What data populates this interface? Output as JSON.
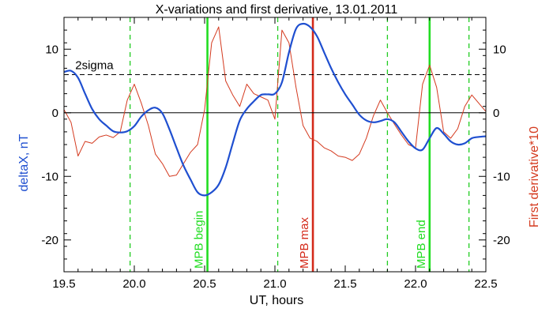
{
  "chart_data": {
    "type": "line",
    "title": "X-variations and first derivative, 13.01.2011",
    "xlabel": "UT, hours",
    "ylabel_left": "deltaX, nT",
    "ylabel_right": "First derivative*10",
    "xlim": [
      19.5,
      22.5
    ],
    "ylim": [
      -25,
      15
    ],
    "x_ticks": [
      19.5,
      20.0,
      20.5,
      21.0,
      21.5,
      22.0,
      22.5
    ],
    "x_tick_labels": [
      "19.5",
      "20.0",
      "20.5",
      "21.0",
      "21.5",
      "22.0",
      "22.5"
    ],
    "y_ticks": [
      -20,
      -10,
      0,
      10
    ],
    "y_tick_labels": [
      "-20",
      "-10",
      "0",
      "10"
    ],
    "grid": false,
    "colors": {
      "deltaX": "#1f4fd0",
      "derivative": "#d43a1f",
      "mpb_begin_end": "#22dd22",
      "mpb_max": "#d42a1a",
      "dashed_markers": "#22cc22",
      "sigma_line": "#000000",
      "zero_line": "#000000"
    },
    "series": [
      {
        "key": "deltaX",
        "x": [
          19.5,
          19.55,
          19.6,
          19.65,
          19.7,
          19.75,
          19.8,
          19.85,
          19.9,
          19.95,
          20.0,
          20.05,
          20.1,
          20.15,
          20.2,
          20.25,
          20.3,
          20.35,
          20.4,
          20.45,
          20.5,
          20.55,
          20.6,
          20.65,
          20.7,
          20.75,
          20.8,
          20.85,
          20.9,
          20.95,
          21.0,
          21.05,
          21.1,
          21.15,
          21.2,
          21.25,
          21.3,
          21.35,
          21.4,
          21.45,
          21.5,
          21.55,
          21.6,
          21.65,
          21.7,
          21.75,
          21.8,
          21.85,
          21.9,
          21.95,
          22.0,
          22.05,
          22.1,
          22.15,
          22.2,
          22.25,
          22.3,
          22.35,
          22.4,
          22.45,
          22.5
        ],
        "values": [
          6.4,
          6.6,
          5.5,
          3.0,
          0.6,
          -1.0,
          -2.0,
          -2.9,
          -3.1,
          -2.9,
          -2.1,
          -0.6,
          0.4,
          0.8,
          -0.1,
          -2.6,
          -5.5,
          -8.3,
          -10.5,
          -12.5,
          -13.0,
          -12.5,
          -11.3,
          -8.6,
          -4.8,
          -1.2,
          0.6,
          1.8,
          2.8,
          2.9,
          3.0,
          4.8,
          9.5,
          13.2,
          14.0,
          13.5,
          12.0,
          9.5,
          7.0,
          4.8,
          2.9,
          1.3,
          -0.3,
          -1.2,
          -1.5,
          -1.3,
          -1.0,
          -1.5,
          -3.0,
          -4.5,
          -5.6,
          -5.8,
          -4.0,
          -2.4,
          -3.3,
          -4.5,
          -5.0,
          -4.8,
          -4.0,
          -3.8,
          -3.7
        ]
      },
      {
        "key": "derivative",
        "x": [
          19.5,
          19.55,
          19.6,
          19.65,
          19.7,
          19.75,
          19.8,
          19.85,
          19.9,
          19.95,
          20.0,
          20.05,
          20.1,
          20.15,
          20.2,
          20.25,
          20.3,
          20.35,
          20.4,
          20.45,
          20.5,
          20.55,
          20.6,
          20.65,
          20.7,
          20.75,
          20.8,
          20.85,
          20.9,
          20.95,
          21.0,
          21.05,
          21.1,
          21.15,
          21.2,
          21.25,
          21.3,
          21.35,
          21.4,
          21.45,
          21.5,
          21.55,
          21.6,
          21.65,
          21.7,
          21.75,
          21.8,
          21.85,
          21.9,
          21.95,
          22.0,
          22.05,
          22.1,
          22.15,
          22.2,
          22.25,
          22.3,
          22.35,
          22.4,
          22.45,
          22.5
        ],
        "values": [
          0.5,
          -1.5,
          -6.8,
          -4.5,
          -4.8,
          -3.8,
          -3.5,
          -3.9,
          -3.0,
          2.0,
          4.5,
          1.5,
          -2.0,
          -6.5,
          -8.0,
          -10.0,
          -9.8,
          -8.0,
          -6.2,
          -5.0,
          0.5,
          11.0,
          13.5,
          5.0,
          2.8,
          1.0,
          4.5,
          3.0,
          2.5,
          2.0,
          -1.0,
          13.0,
          11.0,
          4.0,
          -2.0,
          -4.0,
          -4.5,
          -5.5,
          -6.0,
          -6.8,
          -7.0,
          -7.5,
          -6.5,
          -4.0,
          -0.5,
          2.0,
          0.0,
          -1.8,
          -3.5,
          -5.0,
          -5.5,
          4.5,
          7.5,
          4.0,
          -3.0,
          -4.0,
          -2.5,
          1.0,
          2.8,
          1.5,
          0.2
        ]
      }
    ],
    "reference_lines": {
      "zero": 0,
      "sigma": 6
    },
    "annotations": {
      "sigma_label": "2sigma",
      "mpb_begin": {
        "x": 20.52,
        "label": "MPB begin"
      },
      "mpb_max": {
        "x": 21.27,
        "label": "MPB max"
      },
      "mpb_end": {
        "x": 22.1,
        "label": "MPB end"
      },
      "dashed_markers": [
        19.97,
        21.02,
        21.8,
        22.38
      ]
    }
  }
}
